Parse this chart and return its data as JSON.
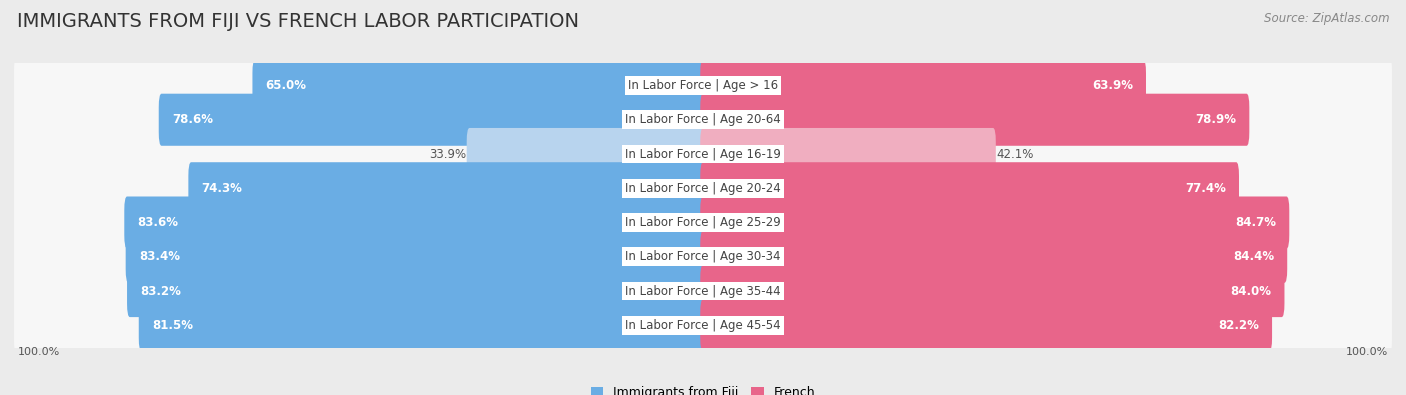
{
  "title": "IMMIGRANTS FROM FIJI VS FRENCH LABOR PARTICIPATION",
  "source": "Source: ZipAtlas.com",
  "categories": [
    "In Labor Force | Age > 16",
    "In Labor Force | Age 20-64",
    "In Labor Force | Age 16-19",
    "In Labor Force | Age 20-24",
    "In Labor Force | Age 25-29",
    "In Labor Force | Age 30-34",
    "In Labor Force | Age 35-44",
    "In Labor Force | Age 45-54"
  ],
  "fiji_values": [
    65.0,
    78.6,
    33.9,
    74.3,
    83.6,
    83.4,
    83.2,
    81.5
  ],
  "french_values": [
    63.9,
    78.9,
    42.1,
    77.4,
    84.7,
    84.4,
    84.0,
    82.2
  ],
  "fiji_color": "#6aade4",
  "fiji_color_light": "#b8d4ee",
  "french_color": "#e8658a",
  "french_color_light": "#f0aec0",
  "max_value": 100.0,
  "background_color": "#ebebeb",
  "row_bg_color": "#f7f7f7",
  "title_fontsize": 14,
  "label_fontsize": 8.5,
  "value_fontsize": 8.5,
  "legend_fontsize": 9,
  "light_rows": [
    2
  ]
}
